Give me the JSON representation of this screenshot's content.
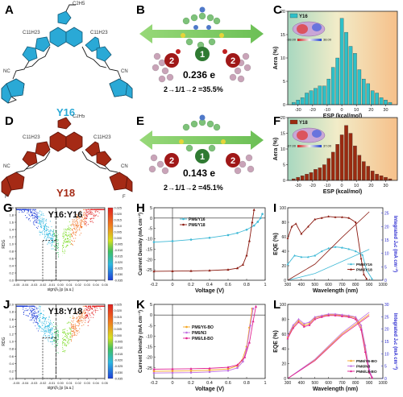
{
  "panels": {
    "A": {
      "label": "A",
      "molecule": "Y16",
      "alkyl_top": "C2H5",
      "alkyl_left": "C11H23",
      "alkyl_right": "C11H23",
      "substituents": [
        "NC",
        "CN"
      ]
    },
    "B": {
      "label": "B",
      "charge": "0.236 e",
      "transfer": "2→1/1→2 =35.5%",
      "site_center": "1",
      "site_side": "2"
    },
    "C": {
      "label": "C"
    },
    "D": {
      "label": "D",
      "molecule": "Y18",
      "alkyl_top": "C2H5",
      "alkyl_left": "C11H23",
      "alkyl_right": "C11H23",
      "substituents": [
        "NC",
        "CN",
        "F",
        "F"
      ]
    },
    "E": {
      "label": "E",
      "charge": "0.143 e",
      "transfer": "2→1/1→2 =45.1%",
      "site_center": "1",
      "site_side": "2"
    },
    "F": {
      "label": "F"
    },
    "G": {
      "label": "G"
    },
    "H": {
      "label": "H"
    },
    "I": {
      "label": "I"
    },
    "J": {
      "label": "J"
    },
    "K": {
      "label": "K"
    },
    "L": {
      "label": "L"
    }
  },
  "colors": {
    "y16_blue": "#2aa9d6",
    "y18_red": "#a52a15",
    "hist_blue": "#2ec0c8",
    "hist_red": "#9a2a10",
    "pm6_y16": "#3fb9d6",
    "pm6_y18": "#8b1a10",
    "pm6_y6bo": "#f5a623",
    "pm6_n3": "#c070e0",
    "pm6_l8bo": "#e02090"
  },
  "chart_data": [
    {
      "panel": "C",
      "type": "bar",
      "legend": "Y16",
      "xlabel": "ESP (kcal/mol)",
      "ylabel": "Aera (%)",
      "xlim": [
        -37,
        38
      ],
      "ylim": [
        0,
        20
      ],
      "xticks": [
        -30,
        -20,
        -10,
        0,
        10,
        20,
        30
      ],
      "yticks": [
        0,
        5,
        10,
        15,
        20
      ],
      "colorbar_min": "-38.00",
      "colorbar_max": "38.00",
      "x": [
        -33,
        -30,
        -27,
        -24,
        -21,
        -18,
        -15,
        -12,
        -9,
        -6,
        -3,
        0,
        3,
        6,
        9,
        12,
        15,
        18,
        21,
        24,
        27,
        30,
        33
      ],
      "values": [
        0.5,
        1.0,
        1.5,
        2.5,
        3.0,
        3.5,
        4.0,
        4.0,
        5.5,
        8.0,
        10.0,
        18.5,
        15.5,
        12.5,
        11.0,
        7.5,
        5.5,
        4.5,
        3.0,
        2.5,
        1.5,
        1.0,
        0.5
      ]
    },
    {
      "panel": "F",
      "type": "bar",
      "legend": "Y18",
      "xlabel": "ESP (kcal/mol)",
      "ylabel": "Aera (%)",
      "xlim": [
        -37,
        38
      ],
      "ylim": [
        0,
        20
      ],
      "xticks": [
        -30,
        -20,
        -10,
        0,
        10,
        20,
        30
      ],
      "yticks": [
        0,
        5,
        10,
        15,
        20
      ],
      "colorbar_min": "-37.00",
      "colorbar_max": "37.00",
      "x": [
        -33,
        -30,
        -27,
        -24,
        -21,
        -18,
        -15,
        -12,
        -9,
        -6,
        -3,
        0,
        3,
        6,
        9,
        12,
        15,
        18,
        21,
        24,
        27,
        30,
        33
      ],
      "values": [
        0.5,
        1.0,
        1.5,
        2.0,
        2.5,
        3.5,
        4.0,
        5.0,
        7.0,
        9.0,
        11.5,
        14.5,
        17.5,
        15.0,
        11.0,
        8.0,
        6.0,
        4.5,
        3.0,
        2.0,
        1.5,
        1.0,
        0.5
      ]
    },
    {
      "panel": "G",
      "type": "scatter",
      "title": "Y16:Y16",
      "xlabel": "sign(λ₂)ρ (a.u.)",
      "ylabel": "RDG",
      "xlim": [
        -0.05,
        0.05
      ],
      "ylim": [
        0,
        2
      ],
      "xticks": [
        -0.05,
        -0.04,
        -0.03,
        -0.02,
        -0.01,
        0.0,
        0.01,
        0.02,
        0.03,
        0.04,
        0.05
      ],
      "xtick_labels": [
        "-0.05",
        "-0.04",
        "-0.03",
        "-0.02",
        "-0.01",
        "0.00",
        "0.01",
        "0.02",
        "0.03",
        "0.04",
        "0.05"
      ],
      "yticks": [
        0,
        0.2,
        0.4,
        0.6,
        0.8,
        1.0,
        1.2,
        1.4,
        1.6,
        1.8,
        2.0
      ],
      "colorbar": [
        "0.025",
        "0.020",
        "0.015",
        "0.010",
        "0.005",
        "0.000",
        "-0.005",
        "-0.010",
        "-0.015",
        "-0.020",
        "-0.025",
        "-0.030",
        "-0.035"
      ]
    },
    {
      "panel": "J",
      "type": "scatter",
      "title": "Y18:Y18",
      "xlabel": "sign(λ₂)ρ (a.u.)",
      "ylabel": "RDG",
      "xlim": [
        -0.05,
        0.05
      ],
      "ylim": [
        0,
        2
      ],
      "xticks": [
        -0.05,
        -0.04,
        -0.03,
        -0.02,
        -0.01,
        0.0,
        0.01,
        0.02,
        0.03,
        0.04,
        0.05
      ],
      "xtick_labels": [
        "-0.05",
        "-0.04",
        "-0.03",
        "-0.02",
        "-0.01",
        "0.00",
        "0.01",
        "0.02",
        "0.03",
        "0.04",
        "0.05"
      ],
      "yticks": [
        0,
        0.2,
        0.4,
        0.6,
        0.8,
        1.0,
        1.2,
        1.4,
        1.6,
        1.8,
        2.0
      ],
      "colorbar": [
        "0.025",
        "0.020",
        "0.015",
        "0.010",
        "0.005",
        "0.000",
        "-0.005",
        "-0.010",
        "-0.015",
        "-0.020",
        "-0.025",
        "-0.030",
        "-0.035"
      ]
    },
    {
      "panel": "H",
      "type": "line",
      "xlabel": "Voltage (V)",
      "ylabel": "Current Density (mA cm⁻²)",
      "xlim": [
        -0.2,
        1.0
      ],
      "ylim": [
        -30,
        5
      ],
      "xticks": [
        -0.2,
        0.0,
        0.2,
        0.4,
        0.6,
        0.8,
        1.0
      ],
      "yticks": [
        -25,
        -20,
        -15,
        -10,
        -5,
        0,
        5
      ],
      "series": [
        {
          "name": "PM6/Y16",
          "color": "#3fb9d6",
          "x": [
            -0.2,
            0.0,
            0.2,
            0.4,
            0.6,
            0.7,
            0.8,
            0.88,
            0.92,
            0.95,
            0.97
          ],
          "y": [
            -11.6,
            -11.1,
            -10.4,
            -9.5,
            -8.2,
            -7.2,
            -5.6,
            -3.6,
            -1.8,
            0.0,
            2.0
          ]
        },
        {
          "name": "PM6/Y18",
          "color": "#8b1a10",
          "x": [
            -0.2,
            0.0,
            0.2,
            0.4,
            0.6,
            0.7,
            0.76,
            0.8,
            0.83,
            0.86,
            0.88
          ],
          "y": [
            -25.7,
            -25.6,
            -25.5,
            -25.3,
            -24.9,
            -24.2,
            -22.5,
            -18.0,
            -11.0,
            -2.0,
            4.0
          ]
        }
      ]
    },
    {
      "panel": "I",
      "type": "line",
      "xlabel": "Wavelength (nm)",
      "ylabel": "EQE (%)",
      "ylabel_right": "Integrated Jₛᴄ (mA cm⁻²)",
      "xlim": [
        300,
        1000
      ],
      "ylim": [
        0,
        100
      ],
      "ylim_right": [
        0,
        27
      ],
      "xticks": [
        300,
        400,
        500,
        600,
        700,
        800,
        900,
        1000
      ],
      "yticks": [
        0,
        20,
        40,
        60,
        80,
        100
      ],
      "yticks_right": [
        0,
        5,
        10,
        15,
        20,
        25
      ],
      "series": [
        {
          "name": "PM6/Y16",
          "color": "#3fb9d6",
          "x": [
            300,
            350,
            400,
            450,
            500,
            550,
            600,
            650,
            700,
            750,
            800,
            850,
            880,
            920
          ],
          "y": [
            22,
            34,
            32,
            32,
            34,
            40,
            44,
            46,
            45,
            43,
            40,
            35,
            14,
            2
          ]
        },
        {
          "name": "PM6/Y18",
          "color": "#8b1a10",
          "x": [
            300,
            330,
            360,
            400,
            450,
            500,
            550,
            600,
            650,
            700,
            750,
            800,
            840,
            860,
            880
          ],
          "y": [
            58,
            74,
            78,
            64,
            74,
            84,
            86,
            88,
            87,
            87,
            86,
            80,
            30,
            8,
            2
          ]
        }
      ],
      "integrated_series": [
        {
          "name": "PM6/Y16",
          "color": "#3fb9d6",
          "x": [
            300,
            500,
            700,
            900
          ],
          "y": [
            0,
            2.5,
            7.0,
            11.5
          ]
        },
        {
          "name": "PM6/Y18",
          "color": "#8b1a10",
          "x": [
            300,
            500,
            700,
            900
          ],
          "y": [
            0,
            6.0,
            16.0,
            25.5
          ]
        }
      ]
    },
    {
      "panel": "K",
      "type": "line",
      "xlabel": "Voltage (V)",
      "ylabel": "Current Density (mA cm⁻²)",
      "xlim": [
        -0.2,
        1.0
      ],
      "ylim": [
        -30,
        5
      ],
      "xticks": [
        -0.2,
        0.0,
        0.2,
        0.4,
        0.6,
        0.8,
        1.0
      ],
      "yticks": [
        -25,
        -20,
        -15,
        -10,
        -5,
        0,
        5
      ],
      "series": [
        {
          "name": "PM6/Y6-BO",
          "color": "#f5a623",
          "x": [
            -0.2,
            0.0,
            0.2,
            0.4,
            0.6,
            0.7,
            0.75,
            0.8,
            0.83,
            0.86
          ],
          "y": [
            -26.6,
            -26.5,
            -26.4,
            -26.1,
            -25.5,
            -24.0,
            -21.5,
            -15.0,
            -6.0,
            3.0
          ]
        },
        {
          "name": "PM6/N3",
          "color": "#c070e0",
          "x": [
            -0.2,
            0.0,
            0.2,
            0.4,
            0.6,
            0.7,
            0.76,
            0.8,
            0.84,
            0.87
          ],
          "y": [
            -27.4,
            -27.3,
            -27.2,
            -26.9,
            -26.3,
            -25.0,
            -22.0,
            -16.0,
            -5.0,
            3.0
          ]
        },
        {
          "name": "PM6/L8-BO",
          "color": "#e02090",
          "x": [
            -0.2,
            0.0,
            0.2,
            0.4,
            0.6,
            0.7,
            0.78,
            0.83,
            0.87,
            0.9
          ],
          "y": [
            -25.6,
            -25.5,
            -25.4,
            -25.2,
            -24.7,
            -23.6,
            -20.0,
            -13.0,
            -3.0,
            4.0
          ]
        }
      ]
    },
    {
      "panel": "L",
      "type": "line",
      "xlabel": "Wavelength (nm)",
      "ylabel": "EQE (%)",
      "ylabel_right": "Integrated Jₛᴄ (mA cm⁻²)",
      "xlim": [
        300,
        1000
      ],
      "ylim": [
        0,
        100
      ],
      "ylim_right": [
        0,
        30
      ],
      "xticks": [
        300,
        400,
        500,
        600,
        700,
        800,
        900,
        1000
      ],
      "yticks": [
        0,
        20,
        40,
        60,
        80,
        100
      ],
      "yticks_right": [
        0,
        5,
        10,
        15,
        20,
        25,
        30
      ],
      "series": [
        {
          "name": "PM6/Y6-BO",
          "color": "#f5a623",
          "x": [
            300,
            340,
            380,
            420,
            460,
            500,
            550,
            600,
            650,
            700,
            750,
            800,
            840,
            870,
            900,
            920
          ],
          "y": [
            56,
            70,
            78,
            72,
            74,
            82,
            84,
            86,
            86,
            85,
            84,
            82,
            70,
            40,
            10,
            2
          ]
        },
        {
          "name": "PM6/N3",
          "color": "#c070e0",
          "x": [
            300,
            340,
            380,
            420,
            460,
            500,
            550,
            600,
            650,
            700,
            750,
            800,
            840,
            870,
            900,
            920
          ],
          "y": [
            58,
            72,
            80,
            74,
            76,
            83,
            85,
            87,
            87,
            86,
            85,
            83,
            72,
            45,
            12,
            2
          ]
        },
        {
          "name": "PM6/L8-BO",
          "color": "#e02090",
          "x": [
            300,
            340,
            380,
            420,
            460,
            500,
            550,
            600,
            650,
            700,
            750,
            800,
            840,
            870,
            900,
            920
          ],
          "y": [
            54,
            68,
            76,
            70,
            72,
            80,
            83,
            85,
            85,
            84,
            83,
            80,
            66,
            36,
            8,
            1
          ]
        }
      ],
      "integrated_series": [
        {
          "name": "PM6/Y6-BO",
          "color": "#f5a623",
          "x": [
            300,
            500,
            700,
            900
          ],
          "y": [
            0,
            7.5,
            18.0,
            26.0
          ]
        },
        {
          "name": "PM6/N3",
          "color": "#c070e0",
          "x": [
            300,
            500,
            700,
            900
          ],
          "y": [
            0,
            7.8,
            18.5,
            26.8
          ]
        },
        {
          "name": "PM6/L8-BO",
          "color": "#e02090",
          "x": [
            300,
            500,
            700,
            900
          ],
          "y": [
            0,
            7.2,
            17.5,
            25.4
          ]
        }
      ]
    }
  ]
}
